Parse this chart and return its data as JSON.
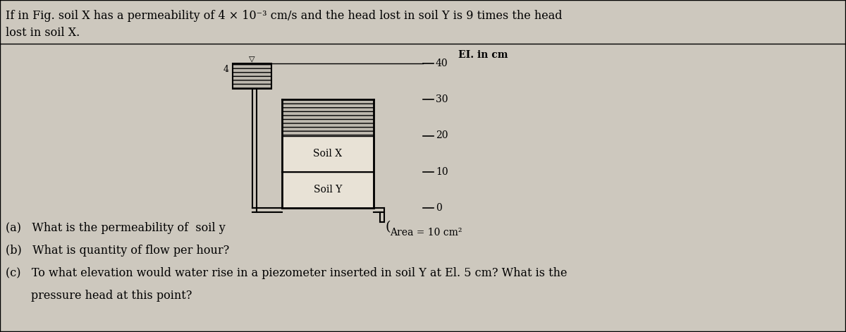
{
  "bg_color": "#cdc8be",
  "title_line1": "If in Fig. soil X has a permeability of 4 × 10⁻³ cm/s and the head lost in soil Y is 9 times the head",
  "title_line2": "lost in soil X.",
  "el_label": "EI. in cm",
  "el_ticks": [
    0,
    10,
    20,
    30,
    40
  ],
  "soil_x_label": "Soil X",
  "soil_y_label": "Soil Y",
  "area_label": "Area = 10 cm²",
  "inlet_label": "4",
  "water_symbol": "▽",
  "q_a": "(a)   What is the permeability of  soil y",
  "q_b": "(b)   What is quantity of flow per hour?",
  "q_c1": "(c)   To what elevation would water rise in a piezometer inserted in soil Y at El. 5 cm? What is the",
  "q_c2": "       pressure head at this point?",
  "hatch_pattern": "---",
  "soil_face_color": "#e8e2d6",
  "hatch_face_color": "#bdb8ae"
}
